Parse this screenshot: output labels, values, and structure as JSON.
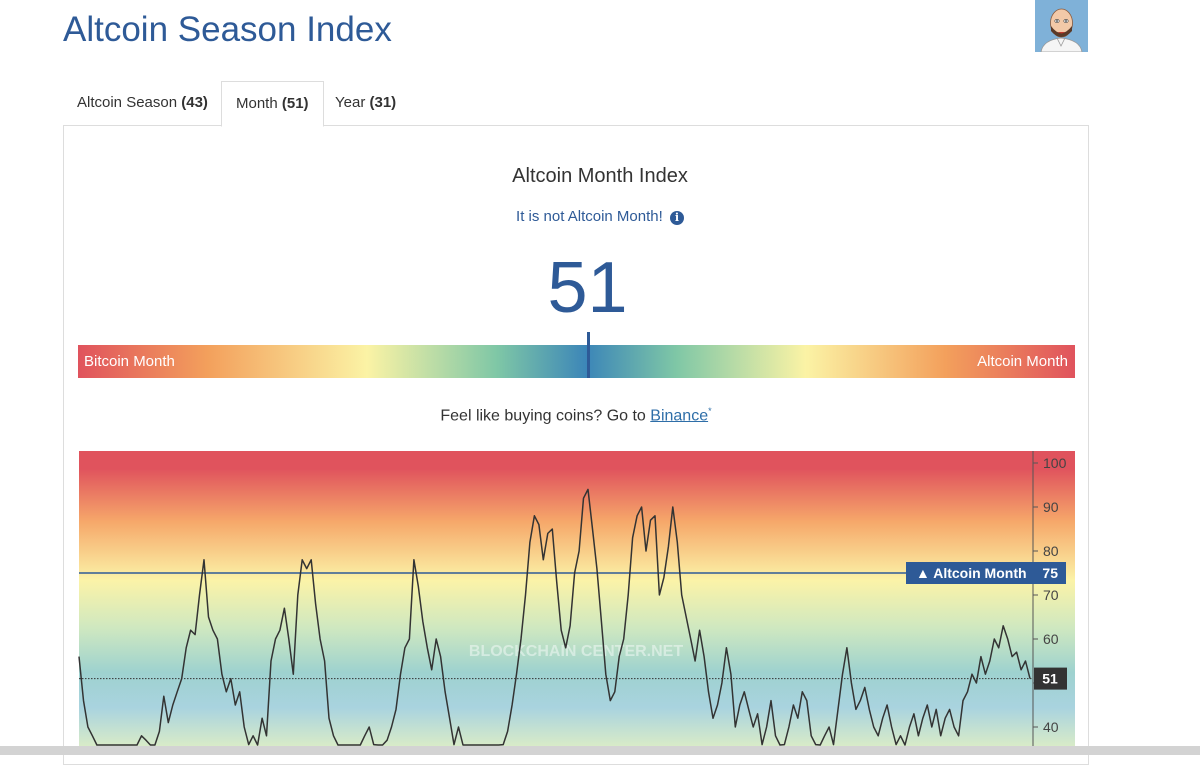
{
  "page": {
    "title": "Altcoin Season Index"
  },
  "tabs": [
    {
      "label": "Altcoin Season",
      "count": "(43)"
    },
    {
      "label": "Month",
      "count": "(51)"
    },
    {
      "label": "Year",
      "count": "(31)"
    }
  ],
  "index": {
    "title": "Altcoin Month Index",
    "status": "It is not Altcoin Month!",
    "value": "51"
  },
  "gauge": {
    "left_label": "Bitcoin Month",
    "right_label": "Altcoin Month",
    "value": 51,
    "min": 0,
    "max": 100
  },
  "promo": {
    "text": "Feel like buying coins? Go to ",
    "link": "Binance",
    "mark": "*"
  },
  "icons": {
    "info": "info-icon",
    "avatar": "avatar-image"
  },
  "colors": {
    "brand": "#2e5a97",
    "red": "#e0535d",
    "orange": "#f3a05c",
    "yellow": "#fbf3a5",
    "green": "#7fc7a6",
    "blue": "#3c86b8"
  },
  "chart_data": {
    "type": "line",
    "watermark": "BLOCKCHAIN CENTER.NET",
    "ylim": [
      35,
      103
    ],
    "y_ticks": [
      40,
      50,
      60,
      70,
      80,
      90,
      100
    ],
    "grid": false,
    "threshold": {
      "label": "▲ Altcoin Month",
      "value": 75
    },
    "current": {
      "label": "51",
      "value": 51
    },
    "series": [
      {
        "values": [
          56,
          46,
          40,
          38,
          32,
          30,
          28,
          29,
          31,
          30,
          32,
          34,
          33,
          35,
          38,
          37,
          33,
          35,
          39,
          47,
          41,
          45,
          48,
          51,
          58,
          62,
          61,
          70,
          78,
          65,
          62,
          60,
          52,
          48,
          51,
          45,
          48,
          40,
          36,
          38,
          35,
          42,
          38,
          55,
          60,
          62,
          67,
          60,
          52,
          70,
          78,
          76,
          78,
          68,
          60,
          55,
          42,
          38,
          35,
          33,
          30,
          32,
          34,
          32,
          38,
          40,
          36,
          34,
          35,
          37,
          40,
          44,
          52,
          58,
          60,
          78,
          72,
          64,
          58,
          53,
          60,
          56,
          48,
          42,
          36,
          40,
          35,
          32,
          34,
          30,
          33,
          35,
          32,
          30,
          33,
          36,
          39,
          45,
          52,
          60,
          70,
          82,
          88,
          86,
          78,
          84,
          85,
          73,
          62,
          58,
          63,
          75,
          80,
          92,
          94,
          85,
          76,
          64,
          52,
          46,
          48,
          56,
          60,
          70,
          83,
          88,
          90,
          80,
          87,
          88,
          70,
          74,
          81,
          90,
          82,
          70,
          65,
          60,
          55,
          62,
          56,
          48,
          42,
          45,
          50,
          58,
          52,
          40,
          45,
          48,
          44,
          40,
          43,
          36,
          40,
          46,
          38,
          32,
          36,
          40,
          45,
          42,
          48,
          46,
          38,
          36,
          34,
          38,
          40,
          36,
          44,
          52,
          58,
          50,
          44,
          46,
          49,
          44,
          40,
          38,
          42,
          45,
          40,
          36,
          38,
          35,
          40,
          43,
          38,
          42,
          45,
          40,
          44,
          38,
          42,
          44,
          40,
          38,
          46,
          48,
          52,
          50,
          56,
          52,
          55,
          60,
          58,
          63,
          60,
          56,
          57,
          53,
          55,
          51
        ]
      }
    ]
  }
}
